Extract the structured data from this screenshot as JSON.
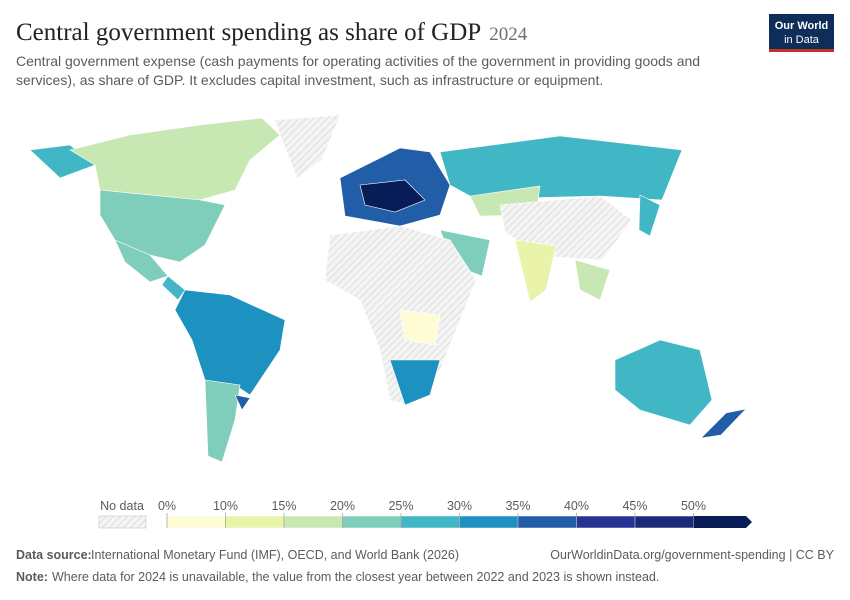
{
  "header": {
    "title": "Central government spending as share of GDP",
    "year": "2024",
    "subtitle_lines": [
      "Central government expense (cash payments for operating activities of the government in providing goods and",
      "services), as share of GDP. It excludes capital investment, such as infrastructure or equipment."
    ],
    "logo": [
      "Our World",
      "in Data"
    ]
  },
  "legend": {
    "no_data": "No data",
    "labels": [
      "0%",
      "10%",
      "15%",
      "20%",
      "25%",
      "30%",
      "35%",
      "40%",
      "45%",
      "50%"
    ],
    "colors": [
      "#fdfcd5",
      "#e9f3a9",
      "#c7e8b3",
      "#7fcdbb",
      "#41b6c4",
      "#1d91c0",
      "#225ea8",
      "#253494",
      "#1a2a7a",
      "#081d58"
    ]
  },
  "footer": {
    "source_label": "Data source:",
    "source": "International Monetary Fund (IMF), OECD, and World Bank (2026)",
    "url": "OurWorldinData.org/government-spending | CC BY",
    "note_label": "Note:",
    "note": "Where data for 2024 is unavailable, the value from the closest year between 2022 and 2023 is shown instead."
  }
}
